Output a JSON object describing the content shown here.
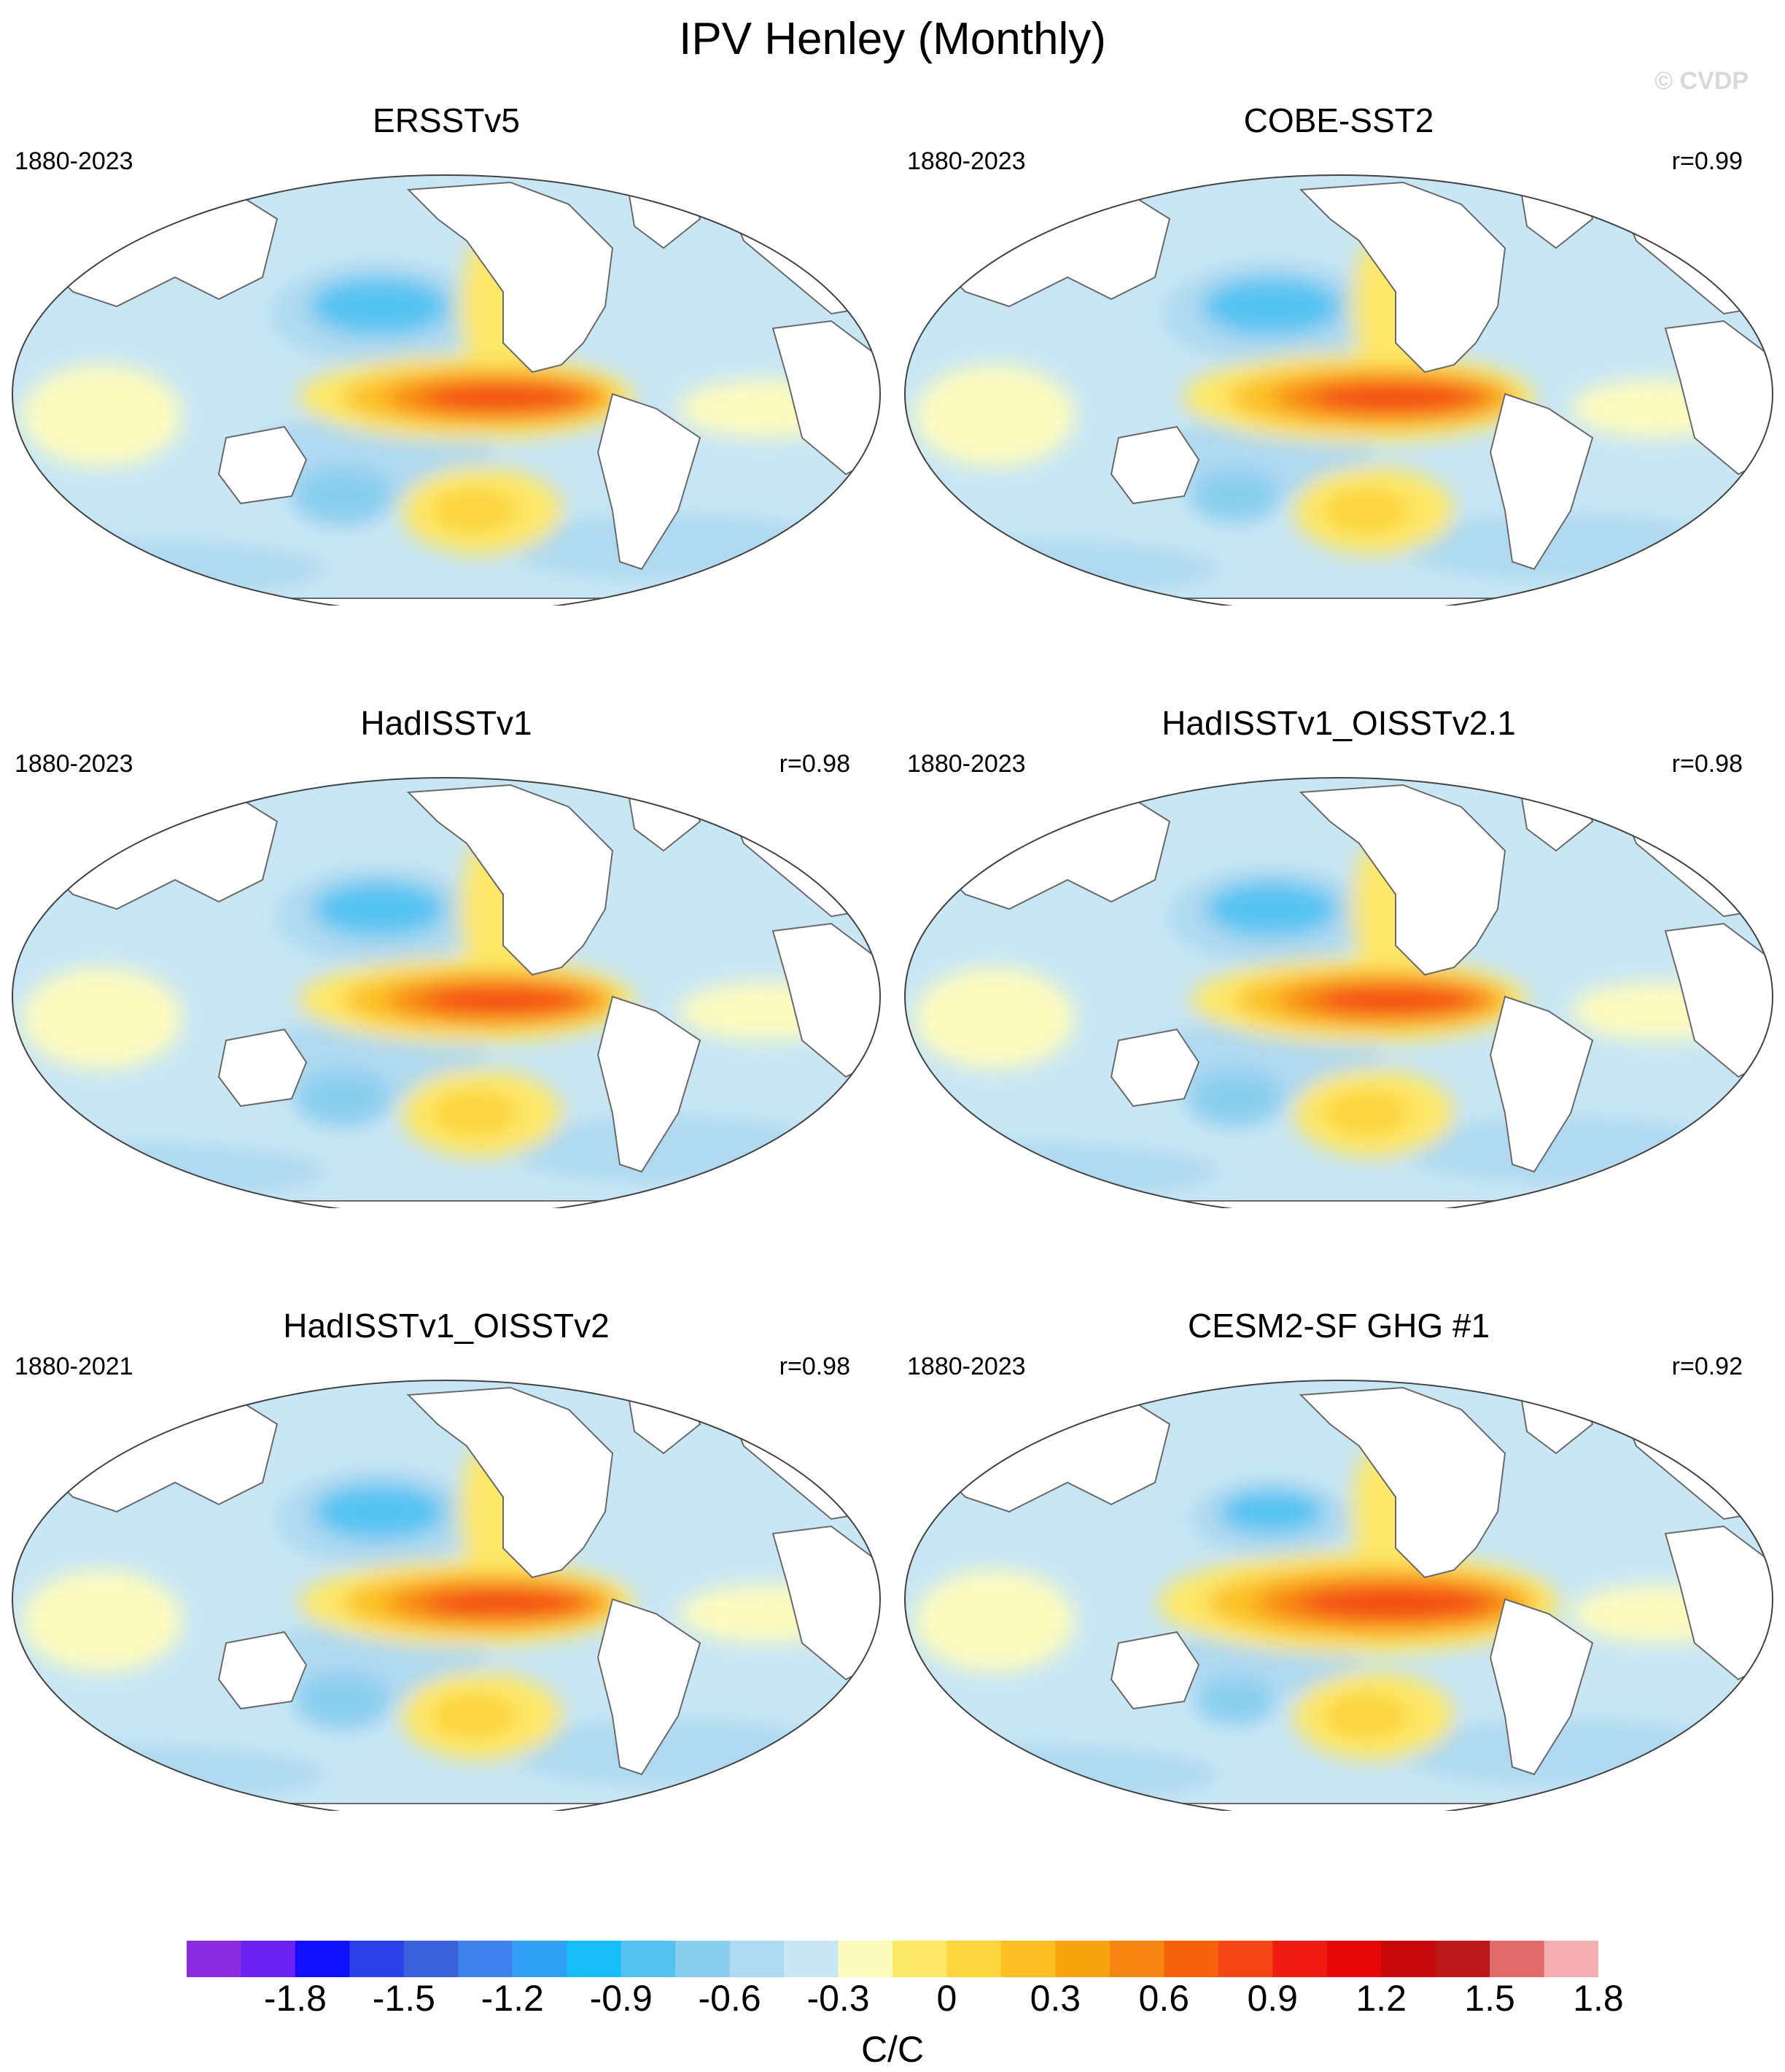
{
  "title": "IPV Henley (Monthly)",
  "watermark": "© CVDP",
  "panels": [
    {
      "name": "ERSSTv5",
      "years": "1880-2023",
      "r": "",
      "warm": 1.0,
      "coldN": 1.0,
      "coldS": 1.0
    },
    {
      "name": "COBE-SST2",
      "years": "1880-2023",
      "r": "r=0.99",
      "warm": 1.05,
      "coldN": 1.0,
      "coldS": 0.9
    },
    {
      "name": "HadISSTv1",
      "years": "1880-2023",
      "r": "r=0.98",
      "warm": 1.0,
      "coldN": 0.95,
      "coldS": 0.95
    },
    {
      "name": "HadISSTv1_OISSTv2.1",
      "years": "1880-2023",
      "r": "r=0.98",
      "warm": 1.0,
      "coldN": 0.95,
      "coldS": 0.95
    },
    {
      "name": "HadISSTv1_OISSTv2",
      "years": "1880-2021",
      "r": "r=0.98",
      "warm": 1.0,
      "coldN": 0.95,
      "coldS": 0.95
    },
    {
      "name": "CESM2-SF GHG #1",
      "years": "1880-2023",
      "r": "r=0.92",
      "warm": 1.2,
      "coldN": 0.75,
      "coldS": 0.8
    }
  ],
  "colorbar": {
    "units": "C/C",
    "labels": [
      "-1.8",
      "-1.5",
      "-1.2",
      "-0.9",
      "-0.6",
      "-0.3",
      "0",
      "0.3",
      "0.6",
      "0.9",
      "1.2",
      "1.5",
      "1.8"
    ],
    "colors": [
      "#8a2be2",
      "#6a22f0",
      "#1010ff",
      "#2a40e8",
      "#3a62dc",
      "#3f82ec",
      "#2fa0f4",
      "#16bdf6",
      "#55c3f2",
      "#89cdee",
      "#afd9f0",
      "#c8e6f4",
      "#fdfcbf",
      "#fde868",
      "#fcd43c",
      "#fbbf24",
      "#f9a30e",
      "#f78512",
      "#f6620a",
      "#f34614",
      "#ee1c10",
      "#e6060a",
      "#c8090b",
      "#b81818",
      "#e26a6a",
      "#f5aeb0"
    ]
  }
}
